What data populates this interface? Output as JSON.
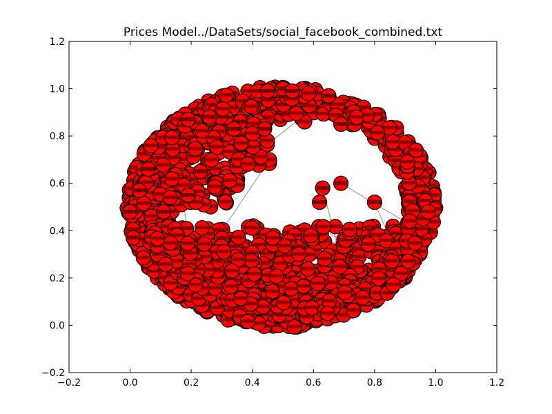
{
  "chart_data": {
    "type": "scatter",
    "title": "Prices Model../DataSets/social_facebook_combined.txt",
    "xlabel": "",
    "ylabel": "",
    "xlim": [
      -0.2,
      1.2
    ],
    "ylim": [
      -0.2,
      1.2
    ],
    "x_ticks": [
      "−0.2",
      "0.0",
      "0.2",
      "0.4",
      "0.6",
      "0.8",
      "1.0",
      "1.2"
    ],
    "y_ticks": [
      "−0.2",
      "0.0",
      "0.2",
      "0.4",
      "0.6",
      "0.8",
      "1.0",
      "1.2"
    ],
    "x_tick_values": [
      -0.2,
      0.0,
      0.2,
      0.4,
      0.6,
      0.8,
      1.0,
      1.2
    ],
    "y_tick_values": [
      -0.2,
      0.0,
      0.2,
      0.4,
      0.6,
      0.8,
      1.0,
      1.2
    ],
    "grid": false,
    "legend": "none",
    "node_color": "#ff0000",
    "node_edge_color": "#000000",
    "edge_color": "#888888",
    "sample_nodes": [
      {
        "x": 0.45,
        "y": 0.99,
        "label": "1902"
      },
      {
        "x": 0.5,
        "y": 1.0,
        "label": "1873"
      },
      {
        "x": 0.53,
        "y": 0.99,
        "label": "1887"
      },
      {
        "x": 0.19,
        "y": 0.87,
        "label": "1854"
      },
      {
        "x": 0.26,
        "y": 0.88,
        "label": "1891"
      },
      {
        "x": 0.36,
        "y": 0.86,
        "label": "1870"
      },
      {
        "x": 0.34,
        "y": 0.83,
        "label": "1876"
      },
      {
        "x": 0.44,
        "y": 0.83,
        "label": "1868"
      },
      {
        "x": 0.06,
        "y": 0.66,
        "label": "1869"
      },
      {
        "x": 0.03,
        "y": 0.57,
        "label": "1845"
      },
      {
        "x": 0.23,
        "y": 0.65,
        "label": "1871"
      },
      {
        "x": 0.19,
        "y": 0.55,
        "label": "1874"
      },
      {
        "x": 0.0,
        "y": 0.48,
        "label": "1857"
      },
      {
        "x": 0.11,
        "y": 0.48,
        "label": "1893"
      },
      {
        "x": 0.01,
        "y": 0.37,
        "label": "1841"
      },
      {
        "x": 0.69,
        "y": 0.6,
        "label": "1872"
      },
      {
        "x": 0.63,
        "y": 0.58,
        "label": "1866"
      },
      {
        "x": 0.62,
        "y": 0.52,
        "label": "1805"
      },
      {
        "x": 0.69,
        "y": 0.85,
        "label": "1885"
      },
      {
        "x": 0.65,
        "y": 0.97,
        "label": "1896"
      },
      {
        "x": 0.8,
        "y": 0.52,
        "label": "1875"
      }
    ]
  }
}
